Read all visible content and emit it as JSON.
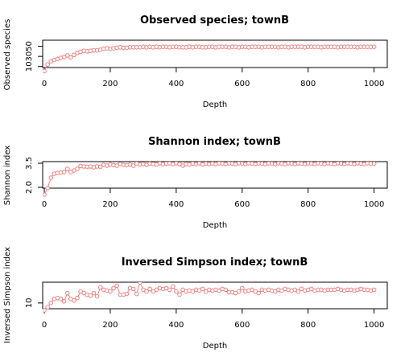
{
  "chart_data": [
    {
      "type": "line",
      "title": "Observed species; townB",
      "xlabel": "Depth",
      "ylabel": "Observed species",
      "xlim": [
        -5,
        1040
      ],
      "ylim": [
        8,
        62
      ],
      "xticks": [
        "0",
        "200",
        "400",
        "600",
        "800",
        "1000"
      ],
      "yticks": [
        "10",
        "30",
        "50"
      ],
      "grid": false,
      "marker": "open-circle",
      "color": "#f08080",
      "series": [
        {
          "x": [
            0,
            10,
            20,
            30,
            40,
            50,
            60,
            70,
            80,
            90,
            100,
            110,
            120,
            130,
            140,
            150,
            160,
            170,
            180,
            190,
            200,
            210,
            220,
            230,
            240,
            250,
            260,
            270,
            280,
            290,
            300,
            310,
            320,
            330,
            340,
            350,
            360,
            370,
            380,
            390,
            400,
            410,
            420,
            430,
            440,
            450,
            460,
            470,
            480,
            490,
            500,
            510,
            520,
            530,
            540,
            550,
            560,
            570,
            580,
            590,
            600,
            610,
            620,
            630,
            640,
            650,
            660,
            670,
            680,
            690,
            700,
            710,
            720,
            730,
            740,
            750,
            760,
            770,
            780,
            790,
            800,
            810,
            820,
            830,
            840,
            850,
            860,
            870,
            880,
            890,
            900,
            910,
            920,
            930,
            940,
            950,
            960,
            970,
            980,
            990,
            1000
          ],
          "y": [
            1,
            14,
            20,
            23,
            25,
            27,
            29,
            32,
            28,
            33,
            37,
            39,
            41,
            40,
            41,
            42,
            42,
            43,
            45,
            46,
            45,
            46,
            47,
            48,
            47,
            47,
            48,
            48,
            48,
            48,
            49,
            48,
            49,
            48,
            49,
            48,
            49,
            49,
            48,
            49,
            49,
            48,
            48,
            48,
            49,
            48,
            49,
            49,
            48,
            48,
            49,
            49,
            48,
            49,
            49,
            49,
            48,
            49,
            49,
            48,
            49,
            49,
            48,
            49,
            49,
            49,
            48,
            49,
            49,
            49,
            49,
            48,
            49,
            49,
            48,
            49,
            49,
            49,
            49,
            48,
            49,
            49,
            49,
            49,
            48,
            49,
            49,
            49,
            49,
            48,
            49,
            49,
            49,
            49,
            49,
            48,
            49,
            49,
            49,
            49,
            49
          ]
        }
      ]
    },
    {
      "type": "line",
      "title": "Shannon index; townB",
      "xlabel": "Depth",
      "ylabel": "Shannon index",
      "xlim": [
        -5,
        1040
      ],
      "ylim": [
        1.95,
        3.6
      ],
      "xticks": [
        "0",
        "200",
        "400",
        "600",
        "800",
        "1000"
      ],
      "yticks": [
        "2.0",
        "3.5"
      ],
      "grid": false,
      "marker": "open-circle",
      "color": "#f08080",
      "series": [
        {
          "x": [
            0,
            10,
            20,
            30,
            40,
            50,
            60,
            70,
            80,
            90,
            100,
            110,
            120,
            130,
            140,
            150,
            160,
            170,
            180,
            190,
            200,
            210,
            220,
            230,
            240,
            250,
            260,
            270,
            280,
            290,
            300,
            310,
            320,
            330,
            340,
            350,
            360,
            370,
            380,
            390,
            400,
            410,
            420,
            430,
            440,
            450,
            460,
            470,
            480,
            490,
            500,
            510,
            520,
            530,
            540,
            550,
            560,
            570,
            580,
            590,
            600,
            610,
            620,
            630,
            640,
            650,
            660,
            670,
            680,
            690,
            700,
            710,
            720,
            730,
            740,
            750,
            760,
            770,
            780,
            790,
            800,
            810,
            820,
            830,
            840,
            850,
            860,
            870,
            880,
            890,
            900,
            910,
            920,
            930,
            940,
            950,
            960,
            970,
            980,
            990,
            1000
          ],
          "y": [
            1.55,
            1.95,
            2.6,
            2.85,
            2.9,
            2.92,
            2.95,
            3.15,
            2.95,
            3.05,
            3.15,
            3.33,
            3.3,
            3.28,
            3.3,
            3.25,
            3.3,
            3.28,
            3.4,
            3.35,
            3.42,
            3.38,
            3.35,
            3.45,
            3.4,
            3.38,
            3.42,
            3.35,
            3.48,
            3.42,
            3.45,
            3.4,
            3.48,
            3.45,
            3.42,
            3.5,
            3.45,
            3.48,
            3.5,
            3.45,
            3.5,
            3.45,
            3.35,
            3.45,
            3.42,
            3.48,
            3.45,
            3.5,
            3.42,
            3.48,
            3.45,
            3.48,
            3.45,
            3.5,
            3.48,
            3.45,
            3.5,
            3.48,
            3.45,
            3.5,
            3.48,
            3.45,
            3.5,
            3.48,
            3.45,
            3.5,
            3.48,
            3.45,
            3.5,
            3.48,
            3.45,
            3.5,
            3.48,
            3.45,
            3.5,
            3.48,
            3.45,
            3.5,
            3.48,
            3.45,
            3.5,
            3.48,
            3.45,
            3.5,
            3.48,
            3.45,
            3.5,
            3.48,
            3.45,
            3.5,
            3.48,
            3.45,
            3.5,
            3.48,
            3.45,
            3.5,
            3.48,
            3.45,
            3.5,
            3.48,
            3.48
          ]
        }
      ]
    },
    {
      "type": "line",
      "title": "Inversed Simpson index; townB",
      "xlabel": "Depth",
      "ylabel": "Inversed Simpson index",
      "xlim": [
        -5,
        1040
      ],
      "ylim": [
        6.5,
        22.6
      ],
      "xticks": [
        "0",
        "200",
        "400",
        "600",
        "800",
        "1000"
      ],
      "yticks": [
        "10"
      ],
      "grid": false,
      "marker": "open-circle",
      "color": "#f08080",
      "series": [
        {
          "x": [
            0,
            10,
            20,
            30,
            40,
            50,
            60,
            70,
            80,
            90,
            100,
            110,
            120,
            130,
            140,
            150,
            160,
            170,
            180,
            190,
            200,
            210,
            220,
            230,
            240,
            250,
            260,
            270,
            280,
            290,
            300,
            310,
            320,
            330,
            340,
            350,
            360,
            370,
            380,
            390,
            400,
            410,
            420,
            430,
            440,
            450,
            460,
            470,
            480,
            490,
            500,
            510,
            520,
            530,
            540,
            550,
            560,
            570,
            580,
            590,
            600,
            610,
            620,
            630,
            640,
            650,
            660,
            670,
            680,
            690,
            700,
            710,
            720,
            730,
            740,
            750,
            760,
            770,
            780,
            790,
            800,
            810,
            820,
            830,
            840,
            850,
            860,
            870,
            880,
            890,
            900,
            910,
            920,
            930,
            940,
            950,
            960,
            970,
            980,
            990,
            1000
          ],
          "y": [
            5.5,
            7.5,
            10,
            12.5,
            13,
            12.5,
            11,
            16,
            12.5,
            11.5,
            13,
            17,
            16,
            15,
            14.5,
            16,
            14,
            19.5,
            18,
            17.5,
            17,
            19,
            20.5,
            15,
            15,
            15.5,
            19,
            18.5,
            15.5,
            22.5,
            18,
            17,
            18.5,
            17,
            18,
            19,
            18.5,
            19,
            18,
            20,
            17,
            15,
            18,
            17,
            17.5,
            17,
            18,
            17.5,
            18.5,
            17,
            18,
            17.5,
            18,
            17.5,
            18.5,
            18,
            16.5,
            16.5,
            16,
            17,
            19,
            17,
            17.5,
            18,
            17,
            16,
            18,
            17.5,
            18,
            17.5,
            17,
            18,
            17.5,
            18.5,
            18,
            17.5,
            18,
            17,
            18.5,
            17.5,
            18,
            18.5,
            17.5,
            18,
            18,
            17.5,
            18,
            18,
            18,
            18.5,
            18,
            17.5,
            18,
            18,
            17.5,
            18,
            18.5,
            18,
            18,
            17.5,
            18
          ]
        }
      ]
    }
  ]
}
